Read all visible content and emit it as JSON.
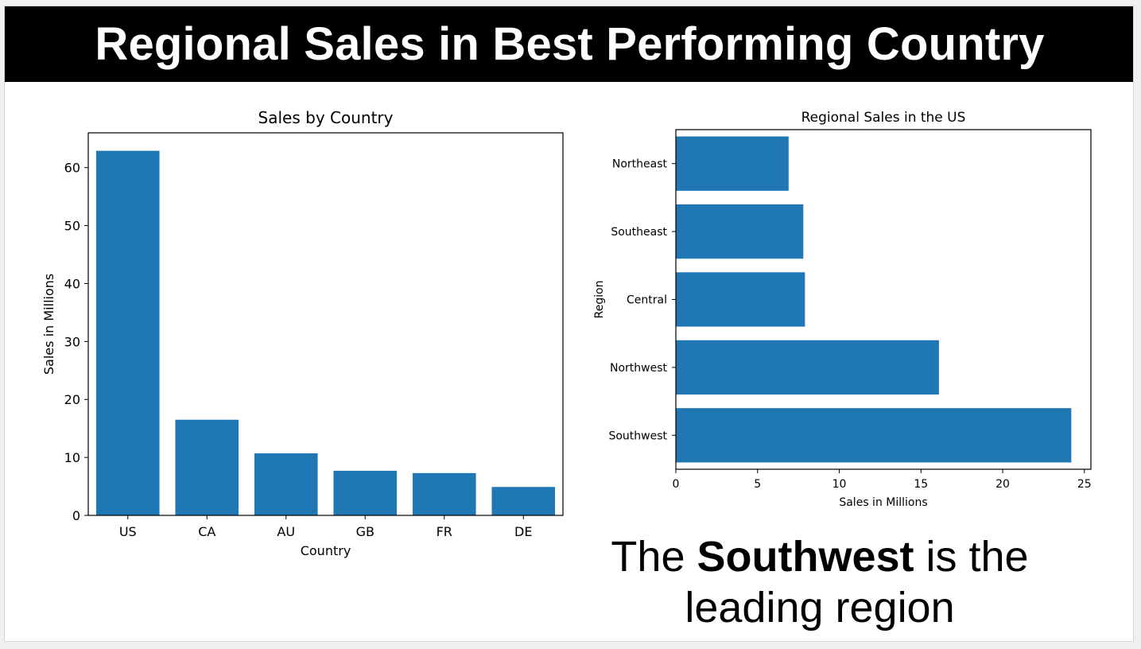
{
  "slide": {
    "title": "Regional Sales in Best Performing Country",
    "callout": {
      "prefix": "The ",
      "emphasis": "Southwest",
      "suffix": " is the",
      "line2": "leading region"
    },
    "colors": {
      "bar": "#1f77b4",
      "banner_bg": "#000000",
      "banner_text": "#ffffff"
    }
  },
  "chart_data": [
    {
      "type": "bar",
      "title": "Sales by Country",
      "xlabel": "Country",
      "ylabel": "Sales in Millions",
      "categories": [
        "US",
        "CA",
        "AU",
        "GB",
        "FR",
        "DE"
      ],
      "values": [
        62.9,
        16.5,
        10.7,
        7.7,
        7.3,
        4.9
      ],
      "ylim": [
        0,
        66
      ],
      "yticks": [
        0,
        10,
        20,
        30,
        40,
        50,
        60
      ],
      "grid": false
    },
    {
      "type": "bar",
      "orientation": "horizontal",
      "title": "Regional Sales in the US",
      "xlabel": "Sales in Millions",
      "ylabel": "Region",
      "categories": [
        "Southwest",
        "Northwest",
        "Central",
        "Southeast",
        "Northeast"
      ],
      "values": [
        24.2,
        16.1,
        7.9,
        7.8,
        6.9
      ],
      "xlim": [
        0,
        25.4
      ],
      "xticks": [
        0,
        5,
        10,
        15,
        20,
        25
      ],
      "grid": false
    }
  ]
}
